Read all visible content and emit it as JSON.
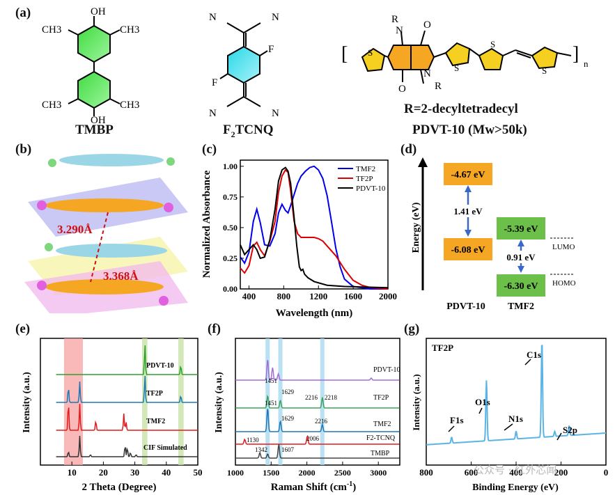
{
  "panels": {
    "a": "(a)",
    "b": "(b)",
    "c": "(c)",
    "d": "(d)",
    "e": "(e)",
    "f": "(f)",
    "g": "(g)"
  },
  "molecules": {
    "tmbp": {
      "name": "TMBP",
      "labels": [
        "OH",
        "CH3",
        "CH3",
        "CH3",
        "CH3",
        "OH"
      ]
    },
    "f2tcnq": {
      "name": "F2TCNQ",
      "labels": [
        "N",
        "N",
        "F",
        "F",
        "N",
        "N"
      ]
    },
    "pdvt": {
      "r_def": "R=2-decyltetradecyl",
      "name": "PDVT-10 (Mw>50k)",
      "labels": [
        "R",
        "N",
        "O",
        "O",
        "N",
        "R",
        "S",
        "S",
        "S",
        "S",
        "n"
      ]
    }
  },
  "stack": {
    "d1": "3.290Å",
    "d2": "3.368Å"
  },
  "chart_c": {
    "type": "line",
    "ylabel": "Normalized Absorbance",
    "xlabel": "Wavelength (nm)",
    "xlim": [
      300,
      2000
    ],
    "ylim": [
      0,
      1.05
    ],
    "xticks": [
      "400",
      "800",
      "1200",
      "1600",
      "2000"
    ],
    "yticks": [
      "0.00",
      "0.25",
      "0.50",
      "0.75",
      "1.00"
    ],
    "series": [
      {
        "name": "TMF2",
        "color": "#0000ee",
        "x": [
          300,
          350,
          400,
          450,
          490,
          530,
          580,
          640,
          700,
          740,
          780,
          820,
          850,
          880,
          920,
          960,
          1000,
          1050,
          1100,
          1150,
          1200,
          1250,
          1300,
          1350,
          1400,
          1450,
          1500,
          1600,
          1700,
          1800,
          2000
        ],
        "y": [
          0.26,
          0.21,
          0.3,
          0.55,
          0.65,
          0.54,
          0.36,
          0.35,
          0.45,
          0.62,
          0.69,
          0.64,
          0.62,
          0.68,
          0.77,
          0.86,
          0.92,
          0.96,
          0.99,
          1.0,
          0.97,
          0.9,
          0.76,
          0.55,
          0.33,
          0.18,
          0.08,
          0.02,
          0.01,
          0.0,
          0.0
        ]
      },
      {
        "name": "TF2P",
        "color": "#dd0000",
        "x": [
          300,
          350,
          400,
          450,
          490,
          530,
          580,
          640,
          700,
          740,
          780,
          820,
          850,
          880,
          920,
          960,
          1000,
          1050,
          1100,
          1150,
          1200,
          1250,
          1300,
          1400,
          1500,
          1600,
          1700,
          1800,
          2000
        ],
        "y": [
          0.17,
          0.13,
          0.19,
          0.35,
          0.38,
          0.32,
          0.27,
          0.39,
          0.55,
          0.79,
          0.92,
          0.97,
          0.95,
          0.8,
          0.55,
          0.45,
          0.42,
          0.42,
          0.42,
          0.42,
          0.41,
          0.39,
          0.35,
          0.27,
          0.16,
          0.07,
          0.03,
          0.01,
          0.0
        ]
      },
      {
        "name": "PDVT-10",
        "color": "#000000",
        "x": [
          300,
          350,
          400,
          450,
          490,
          530,
          580,
          640,
          700,
          740,
          780,
          820,
          850,
          880,
          920,
          950,
          980,
          1000,
          1020,
          1040,
          1080,
          1150,
          1300,
          1500,
          2000
        ],
        "y": [
          0.36,
          0.28,
          0.32,
          0.36,
          0.32,
          0.25,
          0.26,
          0.4,
          0.65,
          0.88,
          0.97,
          0.99,
          0.96,
          0.86,
          0.58,
          0.35,
          0.18,
          0.15,
          0.16,
          0.12,
          0.09,
          0.06,
          0.03,
          0.02,
          0.01
        ]
      }
    ]
  },
  "chart_d": {
    "ylabel": "Energy (eV)",
    "pdvt": {
      "lumo": "-4.67 eV",
      "homo": "-6.08 eV",
      "gap": "1.41 eV",
      "name": "PDVT-10"
    },
    "tmf2": {
      "lumo": "-5.39 eV",
      "homo": "-6.30 eV",
      "gap": "0.91 eV",
      "name": "TMF2"
    },
    "lumo_label": "LUMO",
    "homo_label": "HOMO",
    "colors": {
      "pdvt": "#f5a623",
      "tmf2": "#6cc04a"
    }
  },
  "chart_e": {
    "type": "line",
    "ylabel": "Intensity (a.u.)",
    "xlabel": "2 Theta (Degree)",
    "xlim": [
      0,
      50
    ],
    "xticks": [
      "10",
      "20",
      "30",
      "40",
      "50"
    ],
    "series": [
      {
        "name": "PDVT-10",
        "color": "#2ca02c",
        "peaks": [
          [
            33.2,
            1.0
          ],
          [
            44.6,
            0.3
          ]
        ]
      },
      {
        "name": "TF2P",
        "color": "#1f77b4",
        "peaks": [
          [
            8.9,
            0.55
          ],
          [
            12.5,
            0.75
          ],
          [
            33.2,
            1.0
          ],
          [
            44.6,
            0.25
          ]
        ]
      },
      {
        "name": "TMF2",
        "color": "#e31a1c",
        "peaks": [
          [
            8.9,
            1.0
          ],
          [
            12.5,
            0.95
          ],
          [
            17.6,
            0.35
          ],
          [
            26.5,
            0.6
          ],
          [
            27.2,
            0.3
          ]
        ]
      },
      {
        "name": "CIF Simulated",
        "color": "#333333",
        "peaks": [
          [
            8.9,
            0.25
          ],
          [
            12.5,
            1.0
          ],
          [
            15.9,
            0.1
          ],
          [
            26.9,
            0.55
          ],
          [
            27.6,
            0.45
          ],
          [
            28.6,
            0.2
          ],
          [
            30.4,
            0.1
          ]
        ]
      }
    ],
    "shades": {
      "red": [
        7.5,
        13.5
      ],
      "green_a": [
        32.3,
        34.0
      ],
      "green_b": [
        43.8,
        45.5
      ]
    }
  },
  "chart_f": {
    "type": "line",
    "ylabel": "Intensity (a.u.)",
    "xlabel": "Raman Shift (cm-1)",
    "xlim": [
      1000,
      3300
    ],
    "xticks": [
      "1000",
      "1500",
      "2000",
      "2500",
      "3000"
    ],
    "series": [
      {
        "name": "PDVT-10",
        "color": "#a46cd6"
      },
      {
        "name": "TF2P",
        "color": "#3aa35a"
      },
      {
        "name": "TMF2",
        "color": "#1f77b4"
      },
      {
        "name": "F2-TCNQ",
        "color": "#e31a1c"
      },
      {
        "name": "TMBP",
        "color": "#444444"
      }
    ],
    "annotations": [
      "1451",
      "1451",
      "1629",
      "2216",
      "2218",
      "1629",
      "2216",
      "1130",
      "2006",
      "1342",
      "1607"
    ],
    "bands": [
      1451,
      1629,
      2216
    ]
  },
  "chart_g": {
    "type": "line",
    "title": "TF2P",
    "ylabel": "Intensity (a.u.)",
    "xlabel": "Binding Energy (eV)",
    "xlim": [
      800,
      0
    ],
    "xticks": [
      "800",
      "600",
      "400",
      "200",
      "0"
    ],
    "peaks": [
      "C1s",
      "O1s",
      "N1s",
      "F1s",
      "S2p"
    ],
    "color": "#5ab4e6"
  },
  "watermark": "公众号 · 红外芯闻"
}
